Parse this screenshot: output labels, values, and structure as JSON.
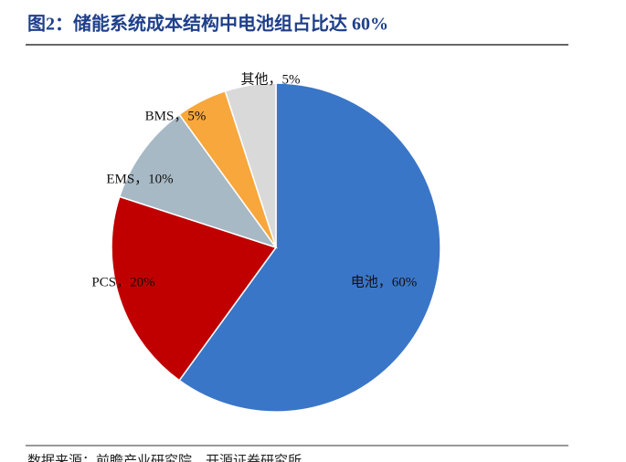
{
  "chart_data": {
    "type": "pie",
    "title": "图2：储能系统成本结构中电池组占比达 60%",
    "values": [
      60,
      20,
      10,
      5,
      5
    ],
    "value_labels": [
      "电池，60%",
      "PCS，20%",
      "EMS，10%",
      "BMS，5%",
      "其他，5%"
    ],
    "colors": [
      "#3a76c7",
      "#c00000",
      "#a7b9c5",
      "#f8a73c",
      "#d9d9d9"
    ],
    "source": "数据来源：前瞻产业研究院、开源证券研究所"
  }
}
